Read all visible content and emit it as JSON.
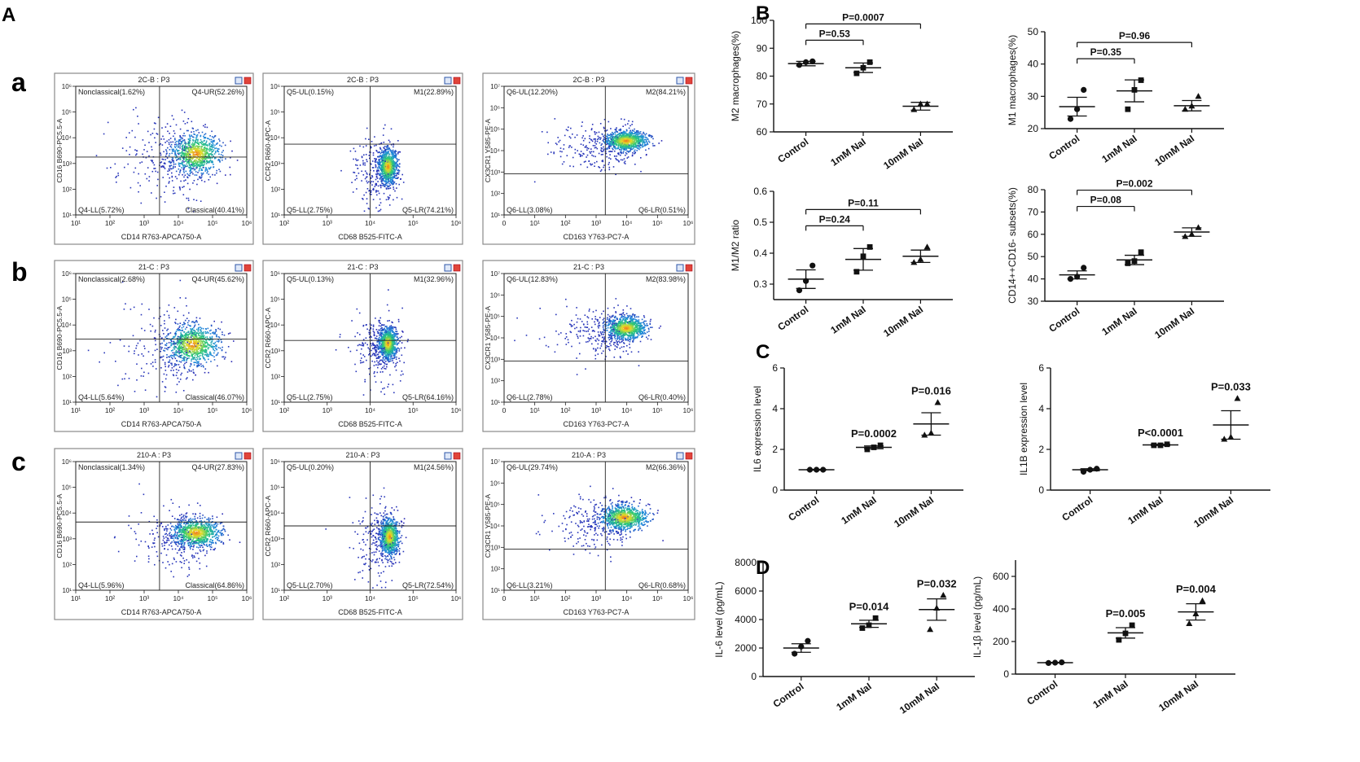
{
  "figure": {
    "panel_labels": {
      "A": "A",
      "B": "B",
      "C": "C",
      "D": "D",
      "a": "a",
      "b": "b",
      "c": "c"
    },
    "colors": {
      "dot": "#2b2fb5",
      "axis": "#111111",
      "box_border": "#8a8a8a",
      "mean_line": "#111111"
    }
  },
  "chart_data": [
    {
      "id": "flow_a1",
      "type": "scatter",
      "title": "2C-B : P3",
      "xlabel": "CD14 R763-APCA750-A",
      "ylabel": "CD16 B690-PC5.5-A",
      "x_ticks": [
        "10¹",
        "10²",
        "10³",
        "10⁴",
        "10⁵",
        "10⁶"
      ],
      "y_ticks": [
        "10¹",
        "10²",
        "10³",
        "10⁴",
        "10⁵",
        "10⁶"
      ],
      "quadrants": {
        "ul": "Nonclassical(1.62%)",
        "ur": "Q4-UR(52.26%)",
        "ll": "Q4-LL(5.72%)",
        "lr": "Classical(40.41%)"
      },
      "gate": {
        "x": 0.49,
        "y": 0.55
      },
      "population": {
        "cx": 0.7,
        "cy": 0.52,
        "sx": 0.13,
        "sy": 0.14,
        "tail": 0.55
      }
    },
    {
      "id": "flow_a2",
      "type": "scatter",
      "title": "2C-B : P3",
      "xlabel": "CD68 B525-FITC-A",
      "ylabel": "CCR2 R660-APC-A",
      "x_ticks": [
        "10²",
        "10³",
        "10⁴",
        "10⁵",
        "10⁶"
      ],
      "y_ticks": [
        "10¹",
        "10²",
        "10³",
        "10⁴",
        "10⁵",
        "10⁶"
      ],
      "quadrants": {
        "ul": "Q5-UL(0.15%)",
        "ur": "M1(22.89%)",
        "ll": "Q5-LL(2.75%)",
        "lr": "Q5-LR(74.21%)"
      },
      "gate": {
        "x": 0.5,
        "y": 0.45
      },
      "population": {
        "cx": 0.6,
        "cy": 0.62,
        "sx": 0.05,
        "sy": 0.12,
        "tail": 0.2
      }
    },
    {
      "id": "flow_a3",
      "type": "scatter",
      "title": "2C-B : P3",
      "xlabel": "CD163 Y763-PC7-A",
      "ylabel": "CX3CR1 Y585-PE-A",
      "x_ticks": [
        "0",
        "10¹",
        "10²",
        "10³",
        "10⁴",
        "10⁵",
        "10⁶"
      ],
      "y_ticks": [
        "10¹",
        "10²",
        "10³",
        "10⁴",
        "10⁵",
        "10⁶",
        "10⁷"
      ],
      "quadrants": {
        "ul": "Q6-UL(12.20%)",
        "ur": "M2(84.21%)",
        "ll": "Q6-LL(3.08%)",
        "lr": "Q6-LR(0.51%)"
      },
      "gate": {
        "x": 0.55,
        "y": 0.68
      },
      "population": {
        "cx": 0.66,
        "cy": 0.42,
        "sx": 0.11,
        "sy": 0.07,
        "tail": 0.5
      }
    },
    {
      "id": "flow_b1",
      "type": "scatter",
      "title": "21-C : P3",
      "xlabel": "CD14 R763-APCA750-A",
      "ylabel": "CD16 B690-PC5.5-A",
      "x_ticks": [
        "10¹",
        "10²",
        "10³",
        "10⁴",
        "10⁵",
        "10⁶"
      ],
      "y_ticks": [
        "10¹",
        "10²",
        "10³",
        "10⁴",
        "10⁵",
        "10⁶"
      ],
      "quadrants": {
        "ul": "Nonclassical(2.68%)",
        "ur": "Q4-UR(45.62%)",
        "ll": "Q4-LL(5.64%)",
        "lr": "Classical(46.07%)"
      },
      "gate": {
        "x": 0.49,
        "y": 0.51
      },
      "population": {
        "cx": 0.68,
        "cy": 0.55,
        "sx": 0.14,
        "sy": 0.14,
        "tail": 0.55
      }
    },
    {
      "id": "flow_b2",
      "type": "scatter",
      "title": "21-C : P3",
      "xlabel": "CD68 B525-FITC-A",
      "ylabel": "CCR2 R660-APC-A",
      "x_ticks": [
        "10²",
        "10³",
        "10⁴",
        "10⁵",
        "10⁶"
      ],
      "y_ticks": [
        "10¹",
        "10²",
        "10³",
        "10⁴",
        "10⁵",
        "10⁶"
      ],
      "quadrants": {
        "ul": "Q5-UL(0.13%)",
        "ur": "M1(32.96%)",
        "ll": "Q5-LL(2.75%)",
        "lr": "Q5-LR(64.16%)"
      },
      "gate": {
        "x": 0.5,
        "y": 0.52
      },
      "population": {
        "cx": 0.6,
        "cy": 0.54,
        "sx": 0.05,
        "sy": 0.11,
        "tail": 0.2
      }
    },
    {
      "id": "flow_b3",
      "type": "scatter",
      "title": "21-C : P3",
      "xlabel": "CD163 Y763-PC7-A",
      "ylabel": "CX3CR1 Y585-PE-A",
      "x_ticks": [
        "0",
        "10¹",
        "10²",
        "10³",
        "10⁴",
        "10⁵",
        "10⁶"
      ],
      "y_ticks": [
        "10¹",
        "10²",
        "10³",
        "10⁴",
        "10⁵",
        "10⁶",
        "10⁷"
      ],
      "quadrants": {
        "ul": "Q6-UL(12.83%)",
        "ur": "M2(83.98%)",
        "ll": "Q6-LL(2.78%)",
        "lr": "Q6-LR(0.40%)"
      },
      "gate": {
        "x": 0.55,
        "y": 0.68
      },
      "population": {
        "cx": 0.66,
        "cy": 0.42,
        "sx": 0.1,
        "sy": 0.08,
        "tail": 0.5
      }
    },
    {
      "id": "flow_c1",
      "type": "scatter",
      "title": "210-A : P3",
      "xlabel": "CD14 R763-APCA750-A",
      "ylabel": "CD16 B690-PC5.5-A",
      "x_ticks": [
        "10¹",
        "10²",
        "10³",
        "10⁴",
        "10⁵",
        "10⁶"
      ],
      "y_ticks": [
        "10¹",
        "10²",
        "10³",
        "10⁴",
        "10⁵",
        "10⁶"
      ],
      "quadrants": {
        "ul": "Nonclassical(1.34%)",
        "ur": "Q4-UR(27.83%)",
        "ll": "Q4-LL(5.96%)",
        "lr": "Classical(64.86%)"
      },
      "gate": {
        "x": 0.49,
        "y": 0.47
      },
      "population": {
        "cx": 0.7,
        "cy": 0.55,
        "sx": 0.13,
        "sy": 0.1,
        "tail": 0.5
      }
    },
    {
      "id": "flow_c2",
      "type": "scatter",
      "title": "210-A : P3",
      "xlabel": "CD68 B525-FITC-A",
      "ylabel": "CCR2 R660-APC-A",
      "x_ticks": [
        "10²",
        "10³",
        "10⁴",
        "10⁵",
        "10⁶"
      ],
      "y_ticks": [
        "10¹",
        "10²",
        "10³",
        "10⁴",
        "10⁵",
        "10⁶"
      ],
      "quadrants": {
        "ul": "Q5-UL(0.20%)",
        "ur": "M1(24.56%)",
        "ll": "Q5-LL(2.70%)",
        "lr": "Q5-LR(72.54%)"
      },
      "gate": {
        "x": 0.5,
        "y": 0.5
      },
      "population": {
        "cx": 0.61,
        "cy": 0.58,
        "sx": 0.05,
        "sy": 0.13,
        "tail": 0.2
      }
    },
    {
      "id": "flow_c3",
      "type": "scatter",
      "title": "210-A : P3",
      "xlabel": "CD163 Y763-PC7-A",
      "ylabel": "CX3CR1 Y585-PE-A",
      "x_ticks": [
        "0",
        "10¹",
        "10²",
        "10³",
        "10⁴",
        "10⁵",
        "10⁶"
      ],
      "y_ticks": [
        "10¹",
        "10²",
        "10³",
        "10⁴",
        "10⁵",
        "10⁶",
        "10⁷"
      ],
      "quadrants": {
        "ul": "Q6-UL(29.74%)",
        "ur": "M2(66.36%)",
        "ll": "Q6-LL(3.21%)",
        "lr": "Q6-LR(0.68%)"
      },
      "gate": {
        "x": 0.55,
        "y": 0.68
      },
      "population": {
        "cx": 0.65,
        "cy": 0.43,
        "sx": 0.12,
        "sy": 0.09,
        "tail": 0.5
      }
    },
    {
      "id": "B_M2",
      "type": "scatter",
      "ylabel": "M2 macrophages(%)",
      "ylim": [
        60,
        100
      ],
      "yticks": [
        60,
        70,
        80,
        90,
        100
      ],
      "categories": [
        "Control",
        "1mM NaI",
        "10mM NaI"
      ],
      "markers": [
        "circle",
        "square",
        "triangle"
      ],
      "values": [
        [
          84,
          85,
          85.3
        ],
        [
          81,
          83,
          85
        ],
        [
          68,
          70,
          70
        ]
      ],
      "means": [
        84.5,
        83,
        69.2
      ],
      "sem": [
        0.8,
        1.7,
        1.4
      ],
      "brackets": [
        {
          "from": 0,
          "to": 1,
          "level": 1,
          "label": "P=0.53"
        },
        {
          "from": 0,
          "to": 2,
          "level": 2,
          "label": "P=0.0007"
        }
      ]
    },
    {
      "id": "B_M1",
      "type": "scatter",
      "ylabel": "M1 macrophages(%)",
      "ylim": [
        20,
        50
      ],
      "yticks": [
        20,
        30,
        40,
        50
      ],
      "categories": [
        "Control",
        "1mM NaI",
        "10mM NaI"
      ],
      "markers": [
        "circle",
        "square",
        "triangle"
      ],
      "values": [
        [
          23,
          26,
          32
        ],
        [
          26,
          32,
          35
        ],
        [
          26,
          27,
          30
        ]
      ],
      "means": [
        26.8,
        31.7,
        27.1
      ],
      "sem": [
        2.9,
        3.4,
        1.6
      ],
      "brackets": [
        {
          "from": 0,
          "to": 1,
          "level": 1,
          "label": "P=0.35"
        },
        {
          "from": 0,
          "to": 2,
          "level": 2,
          "label": "P=0.96"
        }
      ]
    },
    {
      "id": "B_ratio",
      "type": "scatter",
      "ylabel": "M1/M2 ratio",
      "ylim": [
        0.25,
        0.6
      ],
      "yticks": [
        0.3,
        0.4,
        0.5,
        0.6
      ],
      "categories": [
        "Control",
        "1mM NaI",
        "10mM NaI"
      ],
      "markers": [
        "circle",
        "square",
        "triangle"
      ],
      "values": [
        [
          0.28,
          0.31,
          0.36
        ],
        [
          0.34,
          0.39,
          0.42
        ],
        [
          0.37,
          0.38,
          0.42
        ]
      ],
      "means": [
        0.316,
        0.38,
        0.39
      ],
      "sem": [
        0.03,
        0.035,
        0.02
      ],
      "brackets": [
        {
          "from": 0,
          "to": 1,
          "level": 1,
          "label": "P=0.24"
        },
        {
          "from": 0,
          "to": 2,
          "level": 2,
          "label": "P=0.11"
        }
      ]
    },
    {
      "id": "B_CD14",
      "type": "scatter",
      "ylabel": "CD14++CD16- subsets(%)",
      "ylim": [
        30,
        80
      ],
      "yticks": [
        30,
        40,
        50,
        60,
        70,
        80
      ],
      "categories": [
        "Control",
        "1mM NaI",
        "10mM NaI"
      ],
      "markers": [
        "circle",
        "square",
        "triangle"
      ],
      "values": [
        [
          40,
          41,
          45
        ],
        [
          47,
          48,
          52
        ],
        [
          59,
          60,
          63
        ]
      ],
      "means": [
        41.8,
        48.5,
        61
      ],
      "sem": [
        1.8,
        2.1,
        1.9
      ],
      "brackets": [
        {
          "from": 0,
          "to": 1,
          "level": 1,
          "label": "P=0.08"
        },
        {
          "from": 0,
          "to": 2,
          "level": 2,
          "label": "P=0.002"
        }
      ]
    },
    {
      "id": "C_IL6",
      "type": "scatter",
      "ylabel": "IL6 expression level",
      "ylim": [
        0,
        6
      ],
      "yticks": [
        0,
        2,
        4,
        6
      ],
      "categories": [
        "Control",
        "1mM NaI",
        "10mM NaI"
      ],
      "markers": [
        "circle",
        "square",
        "triangle"
      ],
      "values": [
        [
          1,
          1,
          1
        ],
        [
          2.0,
          2.1,
          2.2
        ],
        [
          2.7,
          2.8,
          4.3
        ]
      ],
      "means": [
        1,
        2.1,
        3.25
      ],
      "sem": [
        0.02,
        0.07,
        0.55
      ],
      "point_labels": [
        "",
        "P=0.0002",
        "P=0.016"
      ]
    },
    {
      "id": "C_IL1B",
      "type": "scatter",
      "ylabel": "IL1B expression level",
      "ylim": [
        0,
        6
      ],
      "yticks": [
        0,
        2,
        4,
        6
      ],
      "categories": [
        "Control",
        "1mM NaI",
        "10mM NaI"
      ],
      "markers": [
        "circle",
        "square",
        "triangle"
      ],
      "values": [
        [
          0.9,
          1.0,
          1.05
        ],
        [
          2.2,
          2.2,
          2.25
        ],
        [
          2.5,
          2.6,
          4.5
        ]
      ],
      "means": [
        1,
        2.22,
        3.2
      ],
      "sem": [
        0.05,
        0.03,
        0.7
      ],
      "point_labels": [
        "",
        "P<0.0001",
        "P=0.033"
      ]
    },
    {
      "id": "D_IL6",
      "type": "scatter",
      "ylabel": "IL-6 level (pg/mL)",
      "ylim": [
        0,
        8000
      ],
      "yticks": [
        0,
        2000,
        4000,
        6000,
        8000
      ],
      "categories": [
        "Control",
        "1mM NaI",
        "10mM NaI"
      ],
      "markers": [
        "circle",
        "square",
        "triangle"
      ],
      "values": [
        [
          1600,
          2100,
          2500
        ],
        [
          3400,
          3600,
          4100
        ],
        [
          3300,
          4800,
          5700
        ]
      ],
      "means": [
        2000,
        3700,
        4700
      ],
      "sem": [
        300,
        250,
        750
      ],
      "point_labels": [
        "",
        "P=0.014",
        "P=0.032"
      ]
    },
    {
      "id": "D_IL1b",
      "type": "scatter",
      "ylabel": "IL-1β level (pg/mL)",
      "ylim": [
        0,
        700
      ],
      "yticks": [
        0,
        200,
        400,
        600
      ],
      "categories": [
        "Control",
        "1mM NaI",
        "10mM NaI"
      ],
      "markers": [
        "circle",
        "square",
        "triangle"
      ],
      "values": [
        [
          68,
          70,
          72
        ],
        [
          210,
          250,
          300
        ],
        [
          310,
          370,
          450
        ]
      ],
      "means": [
        70,
        253,
        382
      ],
      "sem": [
        2,
        32,
        50
      ],
      "point_labels": [
        "",
        "P=0.005",
        "P=0.004"
      ]
    }
  ]
}
